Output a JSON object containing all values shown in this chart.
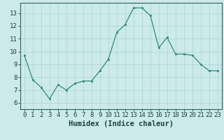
{
  "x": [
    0,
    1,
    2,
    3,
    4,
    5,
    6,
    7,
    8,
    9,
    10,
    11,
    12,
    13,
    14,
    15,
    16,
    17,
    18,
    19,
    20,
    21,
    22,
    23
  ],
  "y": [
    9.7,
    7.8,
    7.2,
    6.3,
    7.4,
    7.0,
    7.5,
    7.7,
    7.7,
    8.5,
    9.4,
    11.5,
    12.1,
    13.4,
    13.4,
    12.8,
    10.3,
    11.1,
    9.8,
    9.8,
    9.7,
    9.0,
    8.5,
    8.5
  ],
  "xlabel": "Humidex (Indice chaleur)",
  "ylim": [
    5.5,
    13.8
  ],
  "xlim": [
    -0.5,
    23.5
  ],
  "yticks": [
    6,
    7,
    8,
    9,
    10,
    11,
    12,
    13
  ],
  "xticks": [
    0,
    1,
    2,
    3,
    4,
    5,
    6,
    7,
    8,
    9,
    10,
    11,
    12,
    13,
    14,
    15,
    16,
    17,
    18,
    19,
    20,
    21,
    22,
    23
  ],
  "line_color": "#2d8b7a",
  "marker_color": "#2d8b7a",
  "bg_color": "#cceaea",
  "grid_color": "#aad4d4",
  "axis_color": "#2a6060",
  "tick_color": "#1a4040",
  "label_color": "#1a4040",
  "font_size": 6.5,
  "xlabel_fontsize": 7.5
}
